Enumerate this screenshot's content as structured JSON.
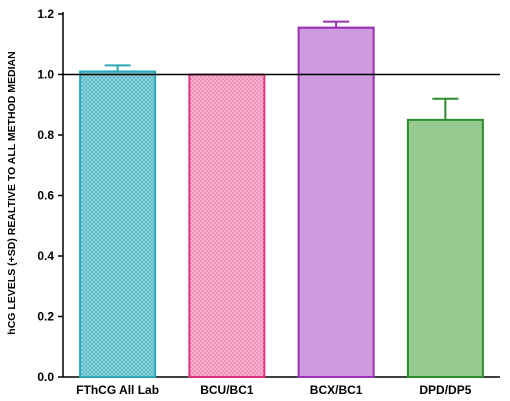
{
  "chart_data": {
    "type": "bar",
    "title": "",
    "xlabel": "",
    "ylabel": "hCG LEVELS (+SD) REALTIVE TO ALL METHOD MEDIAN",
    "ylim": [
      0,
      1.2
    ],
    "yticks": [
      0.0,
      0.2,
      0.4,
      0.6,
      0.8,
      1.0,
      1.2
    ],
    "ytick_labels": [
      "0.0",
      "0.2",
      "0.4",
      "0.6",
      "0.8",
      "1.0",
      "1.2"
    ],
    "reference_line": 1.0,
    "grid": false,
    "categories": [
      "FThCG All Lab",
      "BCU/BC1",
      "BCX/BC1",
      "DPD/DP5"
    ],
    "values": [
      1.01,
      1.0,
      1.155,
      0.85
    ],
    "errors": [
      0.02,
      0.0,
      0.02,
      0.07
    ],
    "colors": [
      "#2aa8b8",
      "#e0337f",
      "#9b2fb5",
      "#2e8b2e"
    ],
    "fills": [
      "#9fd8de",
      "#f7b3cf",
      "#e2c2ef",
      "#bfe3b4"
    ]
  }
}
